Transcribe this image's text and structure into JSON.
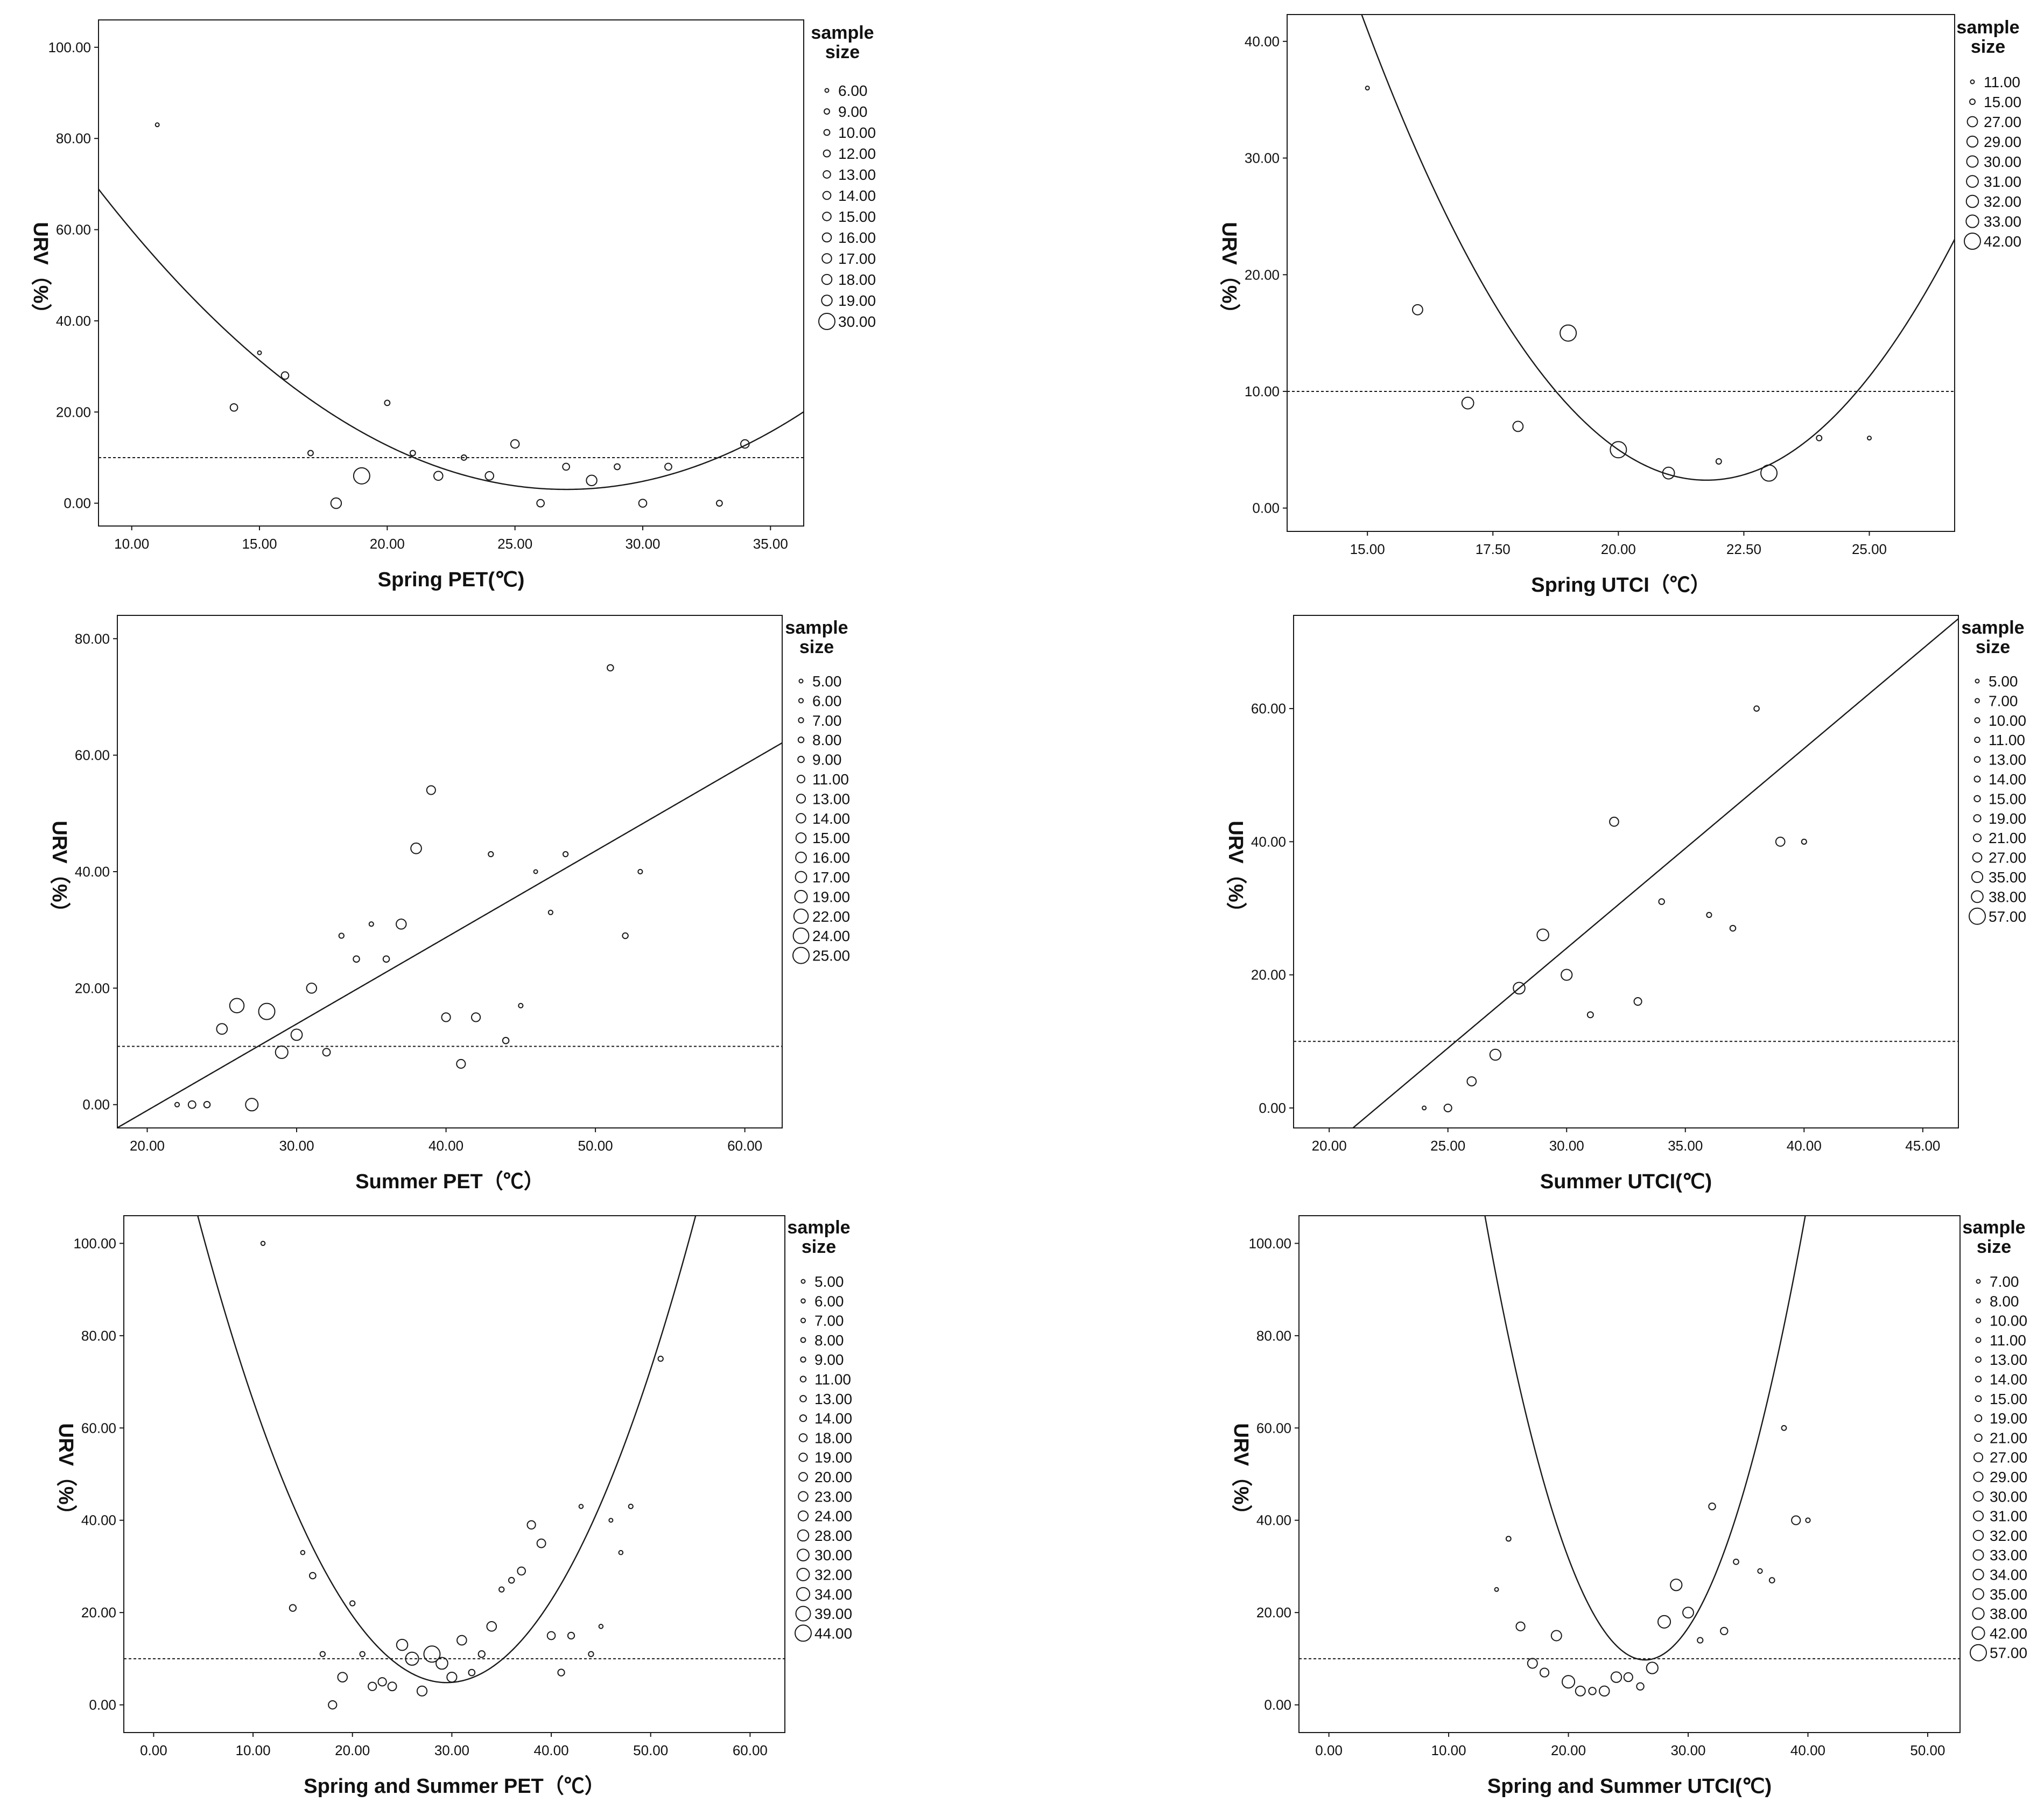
{
  "figure": {
    "colors": {
      "line": "#1a1a1a",
      "background": "#ffffff",
      "marker": "#1a1a1a"
    }
  },
  "chart_data": [
    {
      "type": "scatter",
      "xlabel": "Spring  PET(℃)",
      "ylabel": "URV（%）",
      "xlim": [
        8.7,
        36.3
      ],
      "ylim": [
        -5,
        106
      ],
      "xticks": [
        10,
        15,
        20,
        25,
        30,
        35
      ],
      "yticks": [
        0,
        20,
        40,
        60,
        80,
        100
      ],
      "legend": {
        "title": "sample size",
        "placement": "right",
        "labels": [
          "6.00",
          "9.00",
          "10.00",
          "12.00",
          "13.00",
          "14.00",
          "15.00",
          "16.00",
          "17.00",
          "18.00",
          "19.00",
          "30.00"
        ]
      },
      "points": [
        {
          "x": 11,
          "y": 83,
          "size": 6
        },
        {
          "x": 14,
          "y": 21,
          "size": 13
        },
        {
          "x": 15,
          "y": 33,
          "size": 6
        },
        {
          "x": 16,
          "y": 28,
          "size": 13
        },
        {
          "x": 17,
          "y": 11,
          "size": 9
        },
        {
          "x": 18,
          "y": 0,
          "size": 19
        },
        {
          "x": 19,
          "y": 6,
          "size": 30
        },
        {
          "x": 20,
          "y": 22,
          "size": 9
        },
        {
          "x": 21,
          "y": 11,
          "size": 9
        },
        {
          "x": 22,
          "y": 6,
          "size": 16
        },
        {
          "x": 23,
          "y": 10,
          "size": 9
        },
        {
          "x": 24,
          "y": 6,
          "size": 15
        },
        {
          "x": 25,
          "y": 13,
          "size": 15
        },
        {
          "x": 26,
          "y": 0,
          "size": 13
        },
        {
          "x": 27,
          "y": 8,
          "size": 12
        },
        {
          "x": 28,
          "y": 5,
          "size": 19
        },
        {
          "x": 29,
          "y": 8,
          "size": 10
        },
        {
          "x": 30,
          "y": 0,
          "size": 14
        },
        {
          "x": 31,
          "y": 8,
          "size": 12
        },
        {
          "x": 33,
          "y": 0,
          "size": 10
        },
        {
          "x": 34,
          "y": 13,
          "size": 15
        }
      ],
      "fit": {
        "kind": "quadratic",
        "a": 0.1967,
        "b": -10.621,
        "c": 146.4
      },
      "reference_line": 10
    },
    {
      "type": "scatter",
      "xlabel": "Spring  UTCI（℃）",
      "ylabel": "URV（%）",
      "xlim": [
        13.4,
        26.7
      ],
      "ylim": [
        -2,
        42.3
      ],
      "xticks": [
        15,
        17.5,
        20,
        22.5,
        25
      ],
      "xtick_labels": [
        "15.00",
        "17.50",
        "20.00",
        "22.50",
        "25.00"
      ],
      "yticks": [
        0,
        10,
        20,
        30,
        40
      ],
      "legend": {
        "title": "sample size",
        "placement": "right",
        "labels": [
          "11.00",
          "15.00",
          "27.00",
          "29.00",
          "30.00",
          "31.00",
          "32.00",
          "33.00",
          "42.00"
        ]
      },
      "points": [
        {
          "x": 15,
          "y": 36,
          "size": 11
        },
        {
          "x": 16,
          "y": 17,
          "size": 27
        },
        {
          "x": 17,
          "y": 9,
          "size": 31
        },
        {
          "x": 18,
          "y": 7,
          "size": 27
        },
        {
          "x": 19,
          "y": 15,
          "size": 42
        },
        {
          "x": 20,
          "y": 5,
          "size": 42
        },
        {
          "x": 21,
          "y": 3,
          "size": 31
        },
        {
          "x": 22,
          "y": 4,
          "size": 15
        },
        {
          "x": 23,
          "y": 3,
          "size": 42
        },
        {
          "x": 24,
          "y": 6,
          "size": 15
        },
        {
          "x": 25,
          "y": 6,
          "size": 11
        }
      ],
      "fit": {
        "kind": "quadratic",
        "a": 0.845,
        "b": -36.77,
        "c": 402.4
      },
      "reference_line": 10
    },
    {
      "type": "scatter",
      "xlabel": "Summer  PET（℃）",
      "ylabel": "URV（%）",
      "xlim": [
        18,
        62.5
      ],
      "ylim": [
        -4,
        84
      ],
      "xticks": [
        20,
        30,
        40,
        50,
        60
      ],
      "yticks": [
        0,
        20,
        40,
        60,
        80
      ],
      "legend": {
        "title": "sample size",
        "placement": "right",
        "labels": [
          "5.00",
          "6.00",
          "7.00",
          "8.00",
          "9.00",
          "11.00",
          "13.00",
          "14.00",
          "15.00",
          "16.00",
          "17.00",
          "19.00",
          "22.00",
          "24.00",
          "25.00"
        ]
      },
      "points": [
        {
          "x": 22,
          "y": 0,
          "size": 6
        },
        {
          "x": 23,
          "y": 0,
          "size": 11
        },
        {
          "x": 24,
          "y": 0,
          "size": 9
        },
        {
          "x": 25,
          "y": 13,
          "size": 16
        },
        {
          "x": 26,
          "y": 17,
          "size": 22
        },
        {
          "x": 27,
          "y": 0,
          "size": 19
        },
        {
          "x": 28,
          "y": 16,
          "size": 25
        },
        {
          "x": 29,
          "y": 9,
          "size": 19
        },
        {
          "x": 30,
          "y": 12,
          "size": 17
        },
        {
          "x": 31,
          "y": 20,
          "size": 15
        },
        {
          "x": 32,
          "y": 9,
          "size": 11
        },
        {
          "x": 33,
          "y": 29,
          "size": 7
        },
        {
          "x": 34,
          "y": 25,
          "size": 9
        },
        {
          "x": 35,
          "y": 31,
          "size": 6
        },
        {
          "x": 36,
          "y": 25,
          "size": 9
        },
        {
          "x": 37,
          "y": 31,
          "size": 15
        },
        {
          "x": 38,
          "y": 44,
          "size": 16
        },
        {
          "x": 39,
          "y": 54,
          "size": 13
        },
        {
          "x": 40,
          "y": 15,
          "size": 13
        },
        {
          "x": 41,
          "y": 7,
          "size": 13
        },
        {
          "x": 42,
          "y": 15,
          "size": 13
        },
        {
          "x": 43,
          "y": 43,
          "size": 7
        },
        {
          "x": 44,
          "y": 11,
          "size": 9
        },
        {
          "x": 45,
          "y": 17,
          "size": 6
        },
        {
          "x": 46,
          "y": 40,
          "size": 5
        },
        {
          "x": 47,
          "y": 33,
          "size": 6
        },
        {
          "x": 48,
          "y": 43,
          "size": 7
        },
        {
          "x": 51,
          "y": 75,
          "size": 9
        },
        {
          "x": 52,
          "y": 29,
          "size": 8
        },
        {
          "x": 53,
          "y": 40,
          "size": 6
        }
      ],
      "fit": {
        "kind": "linear",
        "slope": 1.485,
        "intercept": -30.7
      },
      "reference_line": 10
    },
    {
      "type": "scatter",
      "xlabel": "Summer  UTCI(℃)",
      "ylabel": "URV（%）",
      "xlim": [
        18.5,
        46.5
      ],
      "ylim": [
        -3,
        74
      ],
      "xticks": [
        20,
        25,
        30,
        35,
        40,
        45
      ],
      "yticks": [
        0,
        20,
        40,
        60
      ],
      "legend": {
        "title": "sample size",
        "placement": "right",
        "labels": [
          "5.00",
          "7.00",
          "10.00",
          "11.00",
          "13.00",
          "14.00",
          "15.00",
          "19.00",
          "21.00",
          "27.00",
          "35.00",
          "38.00",
          "57.00"
        ]
      },
      "points": [
        {
          "x": 24,
          "y": 0,
          "size": 5
        },
        {
          "x": 25,
          "y": 0,
          "size": 21
        },
        {
          "x": 26,
          "y": 4,
          "size": 27
        },
        {
          "x": 27,
          "y": 8,
          "size": 35
        },
        {
          "x": 28,
          "y": 18,
          "size": 38
        },
        {
          "x": 29,
          "y": 26,
          "size": 38
        },
        {
          "x": 30,
          "y": 20,
          "size": 35
        },
        {
          "x": 31,
          "y": 14,
          "size": 14
        },
        {
          "x": 32,
          "y": 43,
          "size": 27
        },
        {
          "x": 33,
          "y": 16,
          "size": 21
        },
        {
          "x": 34,
          "y": 31,
          "size": 13
        },
        {
          "x": 36,
          "y": 29,
          "size": 10
        },
        {
          "x": 37,
          "y": 27,
          "size": 13
        },
        {
          "x": 38,
          "y": 60,
          "size": 11
        },
        {
          "x": 39,
          "y": 40,
          "size": 27
        },
        {
          "x": 40,
          "y": 40,
          "size": 10
        }
      ],
      "fit": {
        "kind": "linear",
        "slope": 3.0,
        "intercept": -66
      },
      "reference_line": 10
    },
    {
      "type": "scatter",
      "xlabel": "Spring and Summer PET（℃）",
      "ylabel": "URV（%）",
      "xlim": [
        -3,
        63.5
      ],
      "ylim": [
        -6,
        106
      ],
      "xticks": [
        0,
        10,
        20,
        30,
        40,
        50,
        60
      ],
      "yticks": [
        0,
        20,
        40,
        60,
        80,
        100
      ],
      "legend": {
        "title": "sample size",
        "placement": "right",
        "labels": [
          "5.00",
          "6.00",
          "7.00",
          "8.00",
          "9.00",
          "11.00",
          "13.00",
          "14.00",
          "18.00",
          "19.00",
          "20.00",
          "23.00",
          "24.00",
          "28.00",
          "30.00",
          "32.00",
          "34.00",
          "39.00",
          "44.00"
        ]
      },
      "points": [
        {
          "x": 11,
          "y": 100,
          "size": 6
        },
        {
          "x": 14,
          "y": 21,
          "size": 14
        },
        {
          "x": 15,
          "y": 33,
          "size": 6
        },
        {
          "x": 16,
          "y": 28,
          "size": 13
        },
        {
          "x": 17,
          "y": 11,
          "size": 9
        },
        {
          "x": 18,
          "y": 0,
          "size": 19
        },
        {
          "x": 19,
          "y": 6,
          "size": 23
        },
        {
          "x": 20,
          "y": 22,
          "size": 9
        },
        {
          "x": 21,
          "y": 11,
          "size": 9
        },
        {
          "x": 22,
          "y": 4,
          "size": 19
        },
        {
          "x": 23,
          "y": 5,
          "size": 19
        },
        {
          "x": 24,
          "y": 4,
          "size": 20
        },
        {
          "x": 25,
          "y": 13,
          "size": 28
        },
        {
          "x": 26,
          "y": 10,
          "size": 34
        },
        {
          "x": 27,
          "y": 3,
          "size": 24
        },
        {
          "x": 28,
          "y": 11,
          "size": 44
        },
        {
          "x": 29,
          "y": 9,
          "size": 30
        },
        {
          "x": 30,
          "y": 6,
          "size": 24
        },
        {
          "x": 31,
          "y": 14,
          "size": 23
        },
        {
          "x": 32,
          "y": 7,
          "size": 13
        },
        {
          "x": 33,
          "y": 11,
          "size": 14
        },
        {
          "x": 34,
          "y": 17,
          "size": 23
        },
        {
          "x": 35,
          "y": 25,
          "size": 9
        },
        {
          "x": 36,
          "y": 27,
          "size": 11
        },
        {
          "x": 37,
          "y": 29,
          "size": 18
        },
        {
          "x": 38,
          "y": 39,
          "size": 19
        },
        {
          "x": 39,
          "y": 35,
          "size": 20
        },
        {
          "x": 40,
          "y": 15,
          "size": 18
        },
        {
          "x": 41,
          "y": 7,
          "size": 14
        },
        {
          "x": 42,
          "y": 15,
          "size": 14
        },
        {
          "x": 43,
          "y": 43,
          "size": 6
        },
        {
          "x": 44,
          "y": 11,
          "size": 9
        },
        {
          "x": 45,
          "y": 17,
          "size": 6
        },
        {
          "x": 46,
          "y": 40,
          "size": 5
        },
        {
          "x": 47,
          "y": 33,
          "size": 6
        },
        {
          "x": 48,
          "y": 43,
          "size": 7
        },
        {
          "x": 51,
          "y": 75,
          "size": 9
        }
      ],
      "fit": {
        "kind": "quadratic",
        "a": 0.1613,
        "b": -9.51,
        "c": 145.0
      },
      "reference_line": 10
    },
    {
      "type": "scatter",
      "xlabel": "Spring and Summer UTCI(℃)",
      "ylabel": "URV（%）",
      "xlim": [
        -2.5,
        52.7
      ],
      "ylim": [
        -6,
        106
      ],
      "xticks": [
        0,
        10,
        20,
        30,
        40,
        50
      ],
      "yticks": [
        0,
        20,
        40,
        60,
        80,
        100
      ],
      "legend": {
        "title": "sample size",
        "placement": "right",
        "labels": [
          "7.00",
          "8.00",
          "10.00",
          "11.00",
          "13.00",
          "14.00",
          "15.00",
          "19.00",
          "21.00",
          "27.00",
          "29.00",
          "30.00",
          "31.00",
          "32.00",
          "33.00",
          "34.00",
          "35.00",
          "38.00",
          "42.00",
          "57.00"
        ]
      },
      "points": [
        {
          "x": 14,
          "y": 25,
          "size": 7
        },
        {
          "x": 15,
          "y": 36,
          "size": 11
        },
        {
          "x": 16,
          "y": 17,
          "size": 27
        },
        {
          "x": 17,
          "y": 9,
          "size": 31
        },
        {
          "x": 18,
          "y": 7,
          "size": 27
        },
        {
          "x": 19,
          "y": 15,
          "size": 33
        },
        {
          "x": 20,
          "y": 5,
          "size": 42
        },
        {
          "x": 21,
          "y": 3,
          "size": 31
        },
        {
          "x": 22,
          "y": 3,
          "size": 21
        },
        {
          "x": 23,
          "y": 3,
          "size": 32
        },
        {
          "x": 24,
          "y": 6,
          "size": 34
        },
        {
          "x": 25,
          "y": 6,
          "size": 27
        },
        {
          "x": 26,
          "y": 4,
          "size": 21
        },
        {
          "x": 27,
          "y": 8,
          "size": 38
        },
        {
          "x": 28,
          "y": 18,
          "size": 42
        },
        {
          "x": 29,
          "y": 26,
          "size": 38
        },
        {
          "x": 30,
          "y": 20,
          "size": 35
        },
        {
          "x": 31,
          "y": 14,
          "size": 14
        },
        {
          "x": 32,
          "y": 43,
          "size": 19
        },
        {
          "x": 33,
          "y": 16,
          "size": 21
        },
        {
          "x": 34,
          "y": 31,
          "size": 13
        },
        {
          "x": 36,
          "y": 29,
          "size": 10
        },
        {
          "x": 37,
          "y": 27,
          "size": 13
        },
        {
          "x": 38,
          "y": 60,
          "size": 11
        },
        {
          "x": 39,
          "y": 40,
          "size": 27
        },
        {
          "x": 40,
          "y": 40,
          "size": 10
        }
      ],
      "fit": {
        "kind": "quadratic",
        "a": 0.538,
        "b": -28.41,
        "c": 384.8
      },
      "reference_line": 10
    }
  ]
}
